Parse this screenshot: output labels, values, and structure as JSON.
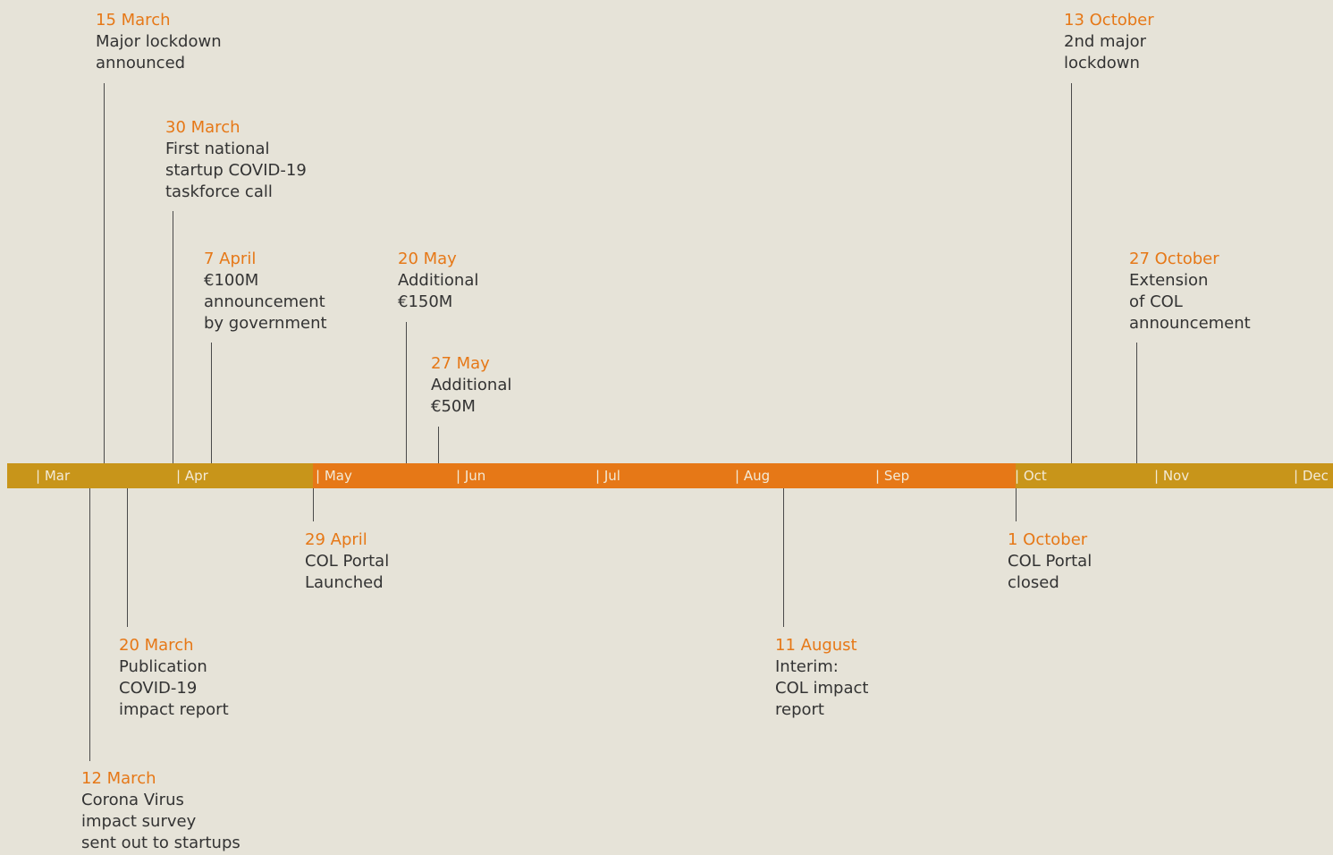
{
  "timeline": {
    "months": [
      "| Mar",
      "| Apr",
      "| May",
      "| Jun",
      "| Jul",
      "| Aug",
      "| Sep",
      "| Oct",
      "| Nov",
      "| Dec"
    ],
    "events": [
      {
        "date": "15 March",
        "lines": [
          "Major lockdown",
          "announced"
        ]
      },
      {
        "date": "30 March",
        "lines": [
          "First national",
          "startup COVID-19",
          "taskforce call"
        ]
      },
      {
        "date": "7 April",
        "lines": [
          "€100M",
          "announcement",
          "by government"
        ]
      },
      {
        "date": "20 May",
        "lines": [
          "Additional",
          "€150M"
        ]
      },
      {
        "date": "27 May",
        "lines": [
          "Additional",
          "€50M"
        ]
      },
      {
        "date": "13 October",
        "lines": [
          "2nd major",
          "lockdown"
        ]
      },
      {
        "date": "27 October",
        "lines": [
          "Extension",
          "of COL",
          "announcement"
        ]
      },
      {
        "date": "29 April",
        "lines": [
          "COL Portal",
          "Launched"
        ]
      },
      {
        "date": "20 March",
        "lines": [
          "Publication",
          "COVID-19",
          "impact report"
        ]
      },
      {
        "date": "12 March",
        "lines": [
          "Corona Virus",
          "impact survey",
          "sent out to startups"
        ]
      },
      {
        "date": "11 August",
        "lines": [
          "Interim:",
          "COL impact",
          "report"
        ]
      },
      {
        "date": "1 October",
        "lines": [
          "COL Portal",
          "closed"
        ]
      }
    ]
  }
}
